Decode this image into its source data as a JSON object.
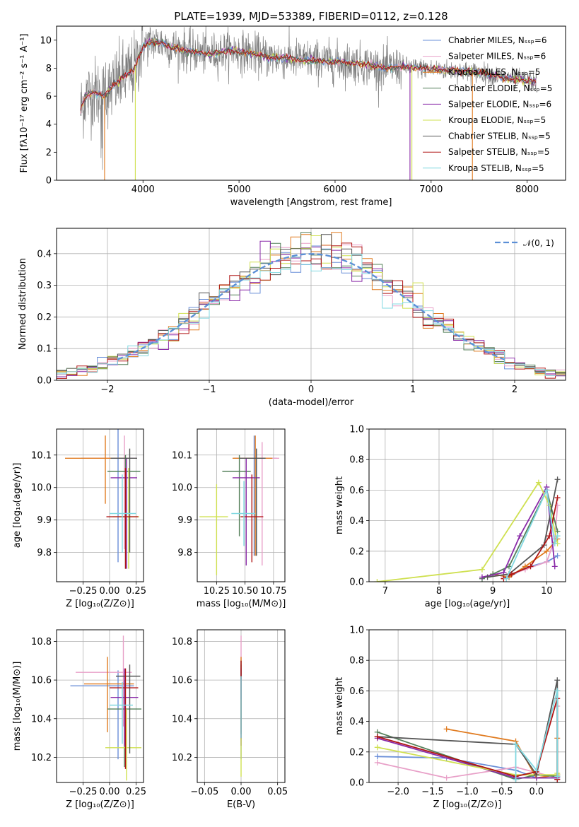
{
  "colors": [
    "#6a8fd8",
    "#e8a0c8",
    "#e07b20",
    "#55805a",
    "#8a2aa8",
    "#cfe050",
    "#555555",
    "#b01515",
    "#80d8e0"
  ],
  "chart_data": [
    {
      "id": "spectrum",
      "type": "line",
      "title": "PLATE=1939, MJD=53389, FIBERID=0112, z=0.128",
      "xlabel": "wavelength [Angstrom, rest frame]",
      "ylabel": "Flux [fλ10⁻¹⁷ erg cm⁻² s⁻¹ A⁻¹]",
      "xlim": [
        3100,
        8400
      ],
      "ylim": [
        0,
        11
      ],
      "xticks": [
        4000,
        5000,
        6000,
        7000,
        8000
      ],
      "yticks": [
        0,
        2,
        4,
        6,
        8,
        10
      ],
      "grid": false,
      "legend_position": "top-right",
      "legend": [
        "Chabrier MILES, Nₛₛₚ=6",
        "Salpeter MILES, Nₛₛₚ=6",
        "Kroupa MILES, Nₛₛₚ=5",
        "Chabrier ELODIE, Nₛₛₚ=5",
        "Salpeter ELODIE, Nₛₛₚ=6",
        "Kroupa ELODIE, Nₛₛₚ=5",
        "Chabrier STELIB, Nₛₛₚ=5",
        "Salpeter STELIB, Nₛₛₚ=5",
        "Kroupa STELIB, Nₛₛₚ=5"
      ],
      "data_continuum": {
        "x": [
          3350,
          3400,
          3500,
          3600,
          3700,
          3800,
          3900,
          4000,
          4100,
          4200,
          4300,
          4500,
          4700,
          4900,
          5100,
          5300,
          5500,
          5700,
          5900,
          6100,
          6300,
          6500,
          6700,
          6900,
          7100,
          7300,
          7500,
          7700,
          7900,
          8100
        ],
        "y": [
          5.0,
          6.0,
          6.3,
          6.0,
          6.8,
          7.4,
          7.8,
          9.6,
          9.9,
          9.8,
          9.5,
          9.2,
          9.0,
          9.3,
          9.1,
          8.8,
          8.7,
          8.6,
          8.5,
          8.4,
          8.3,
          8.0,
          8.1,
          8.0,
          7.9,
          7.8,
          7.7,
          7.4,
          7.2,
          7.0
        ]
      }
    },
    {
      "id": "residuals",
      "type": "histogram",
      "xlabel": "(data-model)/error",
      "ylabel": "Normed distribution",
      "xlim": [
        -2.5,
        2.5
      ],
      "ylim": [
        0,
        0.48
      ],
      "xticks": [
        -2,
        -1,
        0,
        1,
        2
      ],
      "yticks": [
        0.0,
        0.1,
        0.2,
        0.3,
        0.4
      ],
      "grid": true,
      "legend_position": "top-right",
      "legend": [
        "𝒩(0, 1)"
      ],
      "bin_width": 0.1,
      "bin_start": -2.5,
      "reference_curve": "normal(0,1)"
    },
    {
      "id": "age-vs-Z",
      "type": "errorbar",
      "xlabel": "Z [log₁₀(Z/Z⊙)]",
      "ylabel": "age  [log₁₀(age/yr)]",
      "xlim": [
        -0.5,
        0.32
      ],
      "ylim": [
        9.71,
        10.18
      ],
      "xticks": [
        -0.25,
        0.0,
        0.25
      ],
      "yticks": [
        9.8,
        9.9,
        10.0,
        10.1
      ],
      "grid": true,
      "points": [
        {
          "x": 0.08,
          "y": 10.09,
          "xerr": [
            0.35,
            0.15
          ],
          "yerr": [
            0.32,
            0.09
          ]
        },
        {
          "x": 0.14,
          "y": 10.09,
          "xerr": [
            0.4,
            0.12
          ],
          "yerr": [
            0.28,
            0.07
          ]
        },
        {
          "x": -0.04,
          "y": 10.09,
          "xerr": [
            0.38,
            0.2
          ],
          "yerr": [
            0.14,
            0.07
          ]
        },
        {
          "x": 0.15,
          "y": 10.05,
          "xerr": [
            0.17,
            0.14
          ],
          "yerr": [
            0.3,
            0.05
          ]
        },
        {
          "x": 0.16,
          "y": 10.03,
          "xerr": [
            0.15,
            0.1
          ],
          "yerr": [
            0.28,
            0.06
          ]
        },
        {
          "x": 0.18,
          "y": 9.91,
          "xerr": [
            0.15,
            0.1
          ],
          "yerr": [
            0.16,
            0.15
          ]
        },
        {
          "x": 0.19,
          "y": 10.09,
          "xerr": [
            0.18,
            0.07
          ],
          "yerr": [
            0.29,
            0.03
          ]
        },
        {
          "x": 0.15,
          "y": 9.91,
          "xerr": [
            0.18,
            0.12
          ],
          "yerr": [
            0.16,
            0.15
          ]
        },
        {
          "x": 0.12,
          "y": 9.92,
          "xerr": [
            0.12,
            0.13
          ],
          "yerr": [
            0.12,
            0.12
          ]
        }
      ]
    },
    {
      "id": "age-vs-mass",
      "type": "errorbar",
      "xlabel": "mass [log₁₀(M/M⊙)]",
      "xlim": [
        10.08,
        10.85
      ],
      "ylim": [
        9.71,
        10.18
      ],
      "xticks": [
        10.25,
        10.5,
        10.75
      ],
      "yticks": [
        9.8,
        9.9,
        10.0,
        10.1
      ],
      "grid": true,
      "points": [
        {
          "x": 10.58,
          "y": 10.09,
          "xerr": [
            0.18,
            0.2
          ],
          "yerr": [
            0.3,
            0.07
          ]
        },
        {
          "x": 10.65,
          "y": 10.09,
          "xerr": [
            0.2,
            0.15
          ],
          "yerr": [
            0.33,
            0.05
          ]
        },
        {
          "x": 10.59,
          "y": 10.09,
          "xerr": [
            0.2,
            0.15
          ],
          "yerr": [
            0.3,
            0.07
          ]
        },
        {
          "x": 10.45,
          "y": 10.05,
          "xerr": [
            0.15,
            0.1
          ],
          "yerr": [
            0.2,
            0.05
          ]
        },
        {
          "x": 10.51,
          "y": 10.03,
          "xerr": [
            0.12,
            0.12
          ],
          "yerr": [
            0.27,
            0.06
          ]
        },
        {
          "x": 10.25,
          "y": 9.91,
          "xerr": [
            0.15,
            0.1
          ],
          "yerr": [
            0.18,
            0.1
          ]
        },
        {
          "x": 10.6,
          "y": 10.09,
          "xerr": [
            0.15,
            0.08
          ],
          "yerr": [
            0.3,
            0.03
          ]
        },
        {
          "x": 10.56,
          "y": 9.91,
          "xerr": [
            0.1,
            0.1
          ],
          "yerr": [
            0.14,
            0.13
          ]
        },
        {
          "x": 10.49,
          "y": 9.92,
          "xerr": [
            0.11,
            0.1
          ],
          "yerr": [
            0.1,
            0.1
          ]
        }
      ]
    },
    {
      "id": "weight-vs-age",
      "type": "line",
      "xlabel": "age  [log₁₀(age/yr)]",
      "ylabel": "mass weight",
      "xlim": [
        6.7,
        10.35
      ],
      "ylim": [
        0,
        1.0
      ],
      "xticks": [
        7,
        8,
        9,
        10
      ],
      "yticks": [
        0.0,
        0.2,
        0.4,
        0.6,
        0.8,
        1.0
      ],
      "grid": true,
      "series": [
        {
          "x": [
            9.3,
            9.6,
            10.0,
            10.2
          ],
          "y": [
            0.03,
            0.09,
            0.13,
            0.17
          ]
        },
        {
          "x": [
            9.2,
            9.6,
            10.0,
            10.15,
            10.2
          ],
          "y": [
            0.03,
            0.08,
            0.13,
            0.28,
            0.5
          ]
        },
        {
          "x": [
            9.0,
            9.3,
            9.6,
            10.0,
            10.2
          ],
          "y": [
            0.05,
            0.03,
            0.1,
            0.2,
            0.28
          ]
        },
        {
          "x": [
            8.8,
            9.0,
            9.3,
            10.0,
            10.2
          ],
          "y": [
            0.02,
            0.05,
            0.1,
            0.6,
            0.33
          ]
        },
        {
          "x": [
            8.8,
            9.2,
            9.5,
            10.0,
            10.15
          ],
          "y": [
            0.03,
            0.06,
            0.3,
            0.62,
            0.1
          ]
        },
        {
          "x": [
            6.85,
            8.8,
            9.85,
            10.05,
            10.2
          ],
          "y": [
            0.0,
            0.08,
            0.65,
            0.5,
            0.25
          ]
        },
        {
          "x": [
            8.9,
            9.3,
            9.95,
            10.2
          ],
          "y": [
            0.03,
            0.05,
            0.24,
            0.67
          ]
        },
        {
          "x": [
            9.2,
            9.35,
            9.7,
            10.05,
            10.2
          ],
          "y": [
            0.02,
            0.05,
            0.1,
            0.3,
            0.55
          ]
        },
        {
          "x": [
            9.25,
            10.0,
            10.15,
            10.2
          ],
          "y": [
            0.02,
            0.6,
            0.25,
            0.3
          ]
        }
      ]
    },
    {
      "id": "mass-vs-Z",
      "type": "errorbar",
      "xlabel": "Z [log₁₀(Z/Z⊙)]",
      "ylabel": "mass [log₁₀(M/M⊙)]",
      "xlim": [
        -0.5,
        0.32
      ],
      "ylim": [
        10.07,
        10.86
      ],
      "xticks": [
        -0.25,
        0.0,
        0.25
      ],
      "yticks": [
        10.2,
        10.4,
        10.6,
        10.8
      ],
      "grid": true,
      "points": [
        {
          "x": 0.08,
          "y": 10.57,
          "xerr": [
            0.45,
            0.15
          ],
          "yerr": [
            0.38,
            0.08
          ]
        },
        {
          "x": 0.13,
          "y": 10.64,
          "xerr": [
            0.45,
            0.08
          ],
          "yerr": [
            0.28,
            0.19
          ]
        },
        {
          "x": -0.02,
          "y": 10.58,
          "xerr": [
            0.22,
            0.25
          ],
          "yerr": [
            0.25,
            0.14
          ]
        },
        {
          "x": 0.14,
          "y": 10.45,
          "xerr": [
            0.16,
            0.16
          ],
          "yerr": [
            0.3,
            0.15
          ]
        },
        {
          "x": 0.14,
          "y": 10.51,
          "xerr": [
            0.13,
            0.13
          ],
          "yerr": [
            0.25,
            0.15
          ]
        },
        {
          "x": 0.16,
          "y": 10.25,
          "xerr": [
            0.2,
            0.14
          ],
          "yerr": [
            0.17,
            0.2
          ]
        },
        {
          "x": 0.19,
          "y": 10.62,
          "xerr": [
            0.13,
            0.1
          ],
          "yerr": [
            0.4,
            0.06
          ]
        },
        {
          "x": 0.15,
          "y": 10.56,
          "xerr": [
            0.15,
            0.12
          ],
          "yerr": [
            0.42,
            0.1
          ]
        },
        {
          "x": 0.12,
          "y": 10.47,
          "xerr": [
            0.12,
            0.1
          ],
          "yerr": [
            0.2,
            0.12
          ]
        }
      ]
    },
    {
      "id": "mass-vs-ebv",
      "type": "errorbar",
      "xlabel": "E(B-V)",
      "xlim": [
        -0.06,
        0.06
      ],
      "ylim": [
        10.07,
        10.86
      ],
      "xticks": [
        -0.05,
        0.0,
        0.05
      ],
      "yticks": [
        10.2,
        10.4,
        10.6,
        10.8
      ],
      "grid": true,
      "points": [
        {
          "x": 0.0,
          "y": 10.57,
          "xerr": [
            0,
            0
          ],
          "yerr": [
            0.38,
            0.08
          ]
        },
        {
          "x": 0.0,
          "y": 10.64,
          "xerr": [
            0,
            0
          ],
          "yerr": [
            0.28,
            0.19
          ]
        },
        {
          "x": 0.0,
          "y": 10.58,
          "xerr": [
            0,
            0
          ],
          "yerr": [
            0.25,
            0.14
          ]
        },
        {
          "x": 0.0,
          "y": 10.6,
          "xerr": [
            0,
            0
          ],
          "yerr": [
            0.25,
            0.1
          ]
        },
        {
          "x": 0.0,
          "y": 10.51,
          "xerr": [
            0,
            0
          ],
          "yerr": [
            0.25,
            0.15
          ]
        },
        {
          "x": 0.0,
          "y": 10.3,
          "xerr": [
            0,
            0
          ],
          "yerr": [
            0.2,
            0.2
          ]
        },
        {
          "x": 0.0,
          "y": 10.62,
          "xerr": [
            0,
            0
          ],
          "yerr": [
            0.3,
            0.06
          ]
        },
        {
          "x": 0.0,
          "y": 10.6,
          "xerr": [
            0,
            0
          ],
          "yerr": [
            0.3,
            0.1
          ]
        },
        {
          "x": 0.0,
          "y": 10.5,
          "xerr": [
            0,
            0
          ],
          "yerr": [
            0.2,
            0.12
          ]
        }
      ]
    },
    {
      "id": "weight-vs-Z",
      "type": "line",
      "xlabel": "Z [log₁₀(Z/Z⊙)]",
      "ylabel": "mass weight",
      "xlim": [
        -2.42,
        0.42
      ],
      "ylim": [
        0,
        1.0
      ],
      "xticks": [
        -2.0,
        -1.5,
        -1.0,
        -0.5,
        0.0
      ],
      "yticks": [
        0.0,
        0.2,
        0.4,
        0.6,
        0.8,
        1.0
      ],
      "grid": true,
      "series": [
        {
          "x": [
            -2.3,
            -1.3,
            -0.3,
            0.0,
            0.3
          ],
          "y": [
            0.17,
            0.16,
            0.08,
            0.03,
            0.03
          ]
        },
        {
          "x": [
            -2.3,
            -1.3,
            -0.3,
            0.3,
            0.3
          ],
          "y": [
            0.13,
            0.03,
            0.1,
            0.03,
            0.5
          ]
        },
        {
          "x": [
            -1.3,
            -0.3,
            0.0,
            0.3,
            0.3
          ],
          "y": [
            0.35,
            0.27,
            0.03,
            0.05,
            0.29
          ]
        },
        {
          "x": [
            -2.3,
            -0.3,
            0.0,
            0.3,
            0.3
          ],
          "y": [
            0.33,
            0.02,
            0.05,
            0.04,
            0.6
          ]
        },
        {
          "x": [
            -2.3,
            -0.3,
            0.0,
            0.3,
            0.3
          ],
          "y": [
            0.29,
            0.03,
            0.03,
            0.03,
            0.05
          ]
        },
        {
          "x": [
            -2.3,
            -0.3,
            0.0,
            0.3,
            0.3
          ],
          "y": [
            0.23,
            0.05,
            0.05,
            0.05,
            0.06
          ]
        },
        {
          "x": [
            -2.3,
            -0.3,
            0.0,
            0.3,
            0.3
          ],
          "y": [
            0.3,
            0.25,
            0.05,
            0.67,
            0.02
          ]
        },
        {
          "x": [
            -2.3,
            -0.3,
            0.0,
            0.3,
            0.3
          ],
          "y": [
            0.3,
            0.04,
            0.07,
            0.55,
            0.02
          ]
        },
        {
          "x": [
            -0.3,
            -0.3,
            0.0,
            0.3,
            0.3
          ],
          "y": [
            0.02,
            0.25,
            0.08,
            0.6,
            0.04
          ]
        }
      ]
    }
  ]
}
